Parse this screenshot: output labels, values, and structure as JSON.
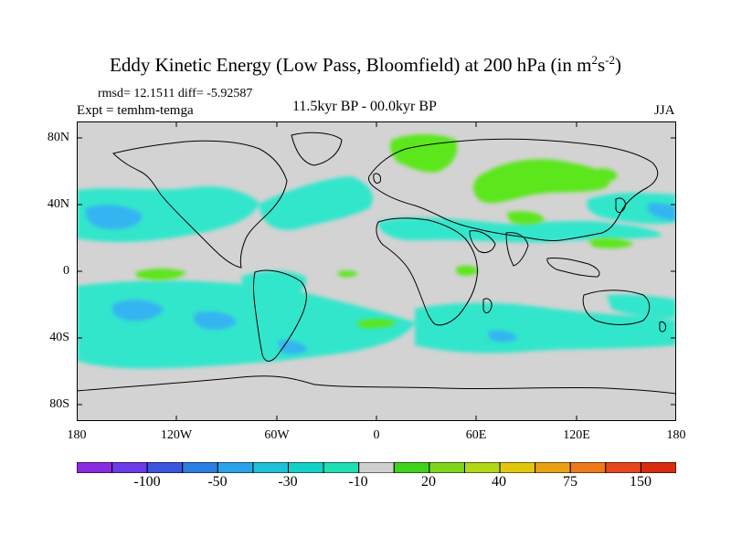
{
  "title": {
    "main": "Eddy Kinetic Energy (Low Pass, Bloomfield) at 200 hPa (in m",
    "sup1": "2",
    "mid": "s",
    "sup2": "-2",
    "close": ")"
  },
  "stats": "rmsd= 12.1511 diff= -5.92587",
  "expt": "Expt = temhm-temga",
  "center_label": "11.5kyr BP - 00.0kyr BP",
  "season": "JJA",
  "lat_labels": [
    "80N",
    "40N",
    "0",
    "40S",
    "80S"
  ],
  "lon_labels": [
    "180",
    "120W",
    "60W",
    "0",
    "60E",
    "120E",
    "180"
  ],
  "colorbar": {
    "labels": [
      "-100",
      "-50",
      "-30",
      "-10",
      "20",
      "40",
      "75",
      "150"
    ],
    "colors": [
      "#8a2be2",
      "#6a3be6",
      "#3b56dd",
      "#2a7fe0",
      "#2aa3e8",
      "#1ec0da",
      "#14d1c8",
      "#1fe0b2",
      "#cfcfcf",
      "#3fd11b",
      "#7ed51a",
      "#b3d616",
      "#e1c60e",
      "#eaa013",
      "#ec7a1c",
      "#e5481d",
      "#d82c10"
    ]
  },
  "colors": {
    "land_sea_background": "#d3d3d3",
    "cyan_fill": "#33e6cc",
    "blue_fill": "#36b4f2",
    "green_fill": "#5ce61e"
  }
}
